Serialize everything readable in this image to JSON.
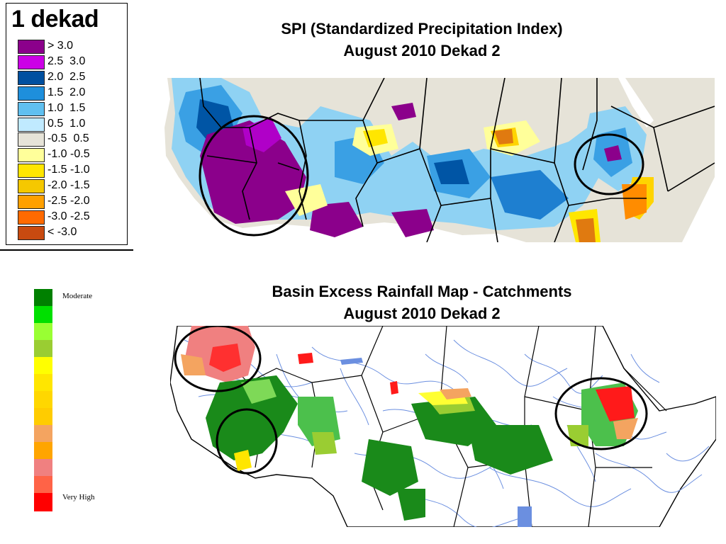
{
  "spi_legend": {
    "title": "1 dekad",
    "items": [
      {
        "label": "> 3.0",
        "color": "#8b008b"
      },
      {
        "label": "2.5  3.0",
        "color": "#cc00e6"
      },
      {
        "label": "2.0  2.5",
        "color": "#0050a0"
      },
      {
        "label": "1.5  2.0",
        "color": "#1e8fdc"
      },
      {
        "label": "1.0  1.5",
        "color": "#60c0f0"
      },
      {
        "label": "0.5  1.0",
        "color": "#c0eaff"
      },
      {
        "label": "-0.5  0.5",
        "color": "#e6e3d8"
      },
      {
        "label": "-1.0 -0.5",
        "color": "#ffff9a"
      },
      {
        "label": "-1.5 -1.0",
        "color": "#ffe600"
      },
      {
        "label": "-2.0 -1.5",
        "color": "#f5c800"
      },
      {
        "label": "-2.5 -2.0",
        "color": "#ffa000"
      },
      {
        "label": "-3.0 -2.5",
        "color": "#ff6a00"
      },
      {
        "label": "< -3.0",
        "color": "#c84a10"
      }
    ]
  },
  "spi_map": {
    "title_line1": "SPI (Standardized Precipitation Index)",
    "title_line2": "August 2010 Dekad 2"
  },
  "ber_legend": {
    "top_label": "Moderate",
    "bottom_label": "Very High",
    "colors": [
      "#008000",
      "#00e000",
      "#99ff33",
      "#9acd32",
      "#ffff00",
      "#ffe600",
      "#ffd700",
      "#ffcc00",
      "#f4a460",
      "#ffa500",
      "#f08080",
      "#ff6347",
      "#ff0000"
    ]
  },
  "ber_map": {
    "title_line1": "Basin Excess Rainfall Map - Catchments",
    "title_line2": "August 2010 Dekad 2"
  }
}
